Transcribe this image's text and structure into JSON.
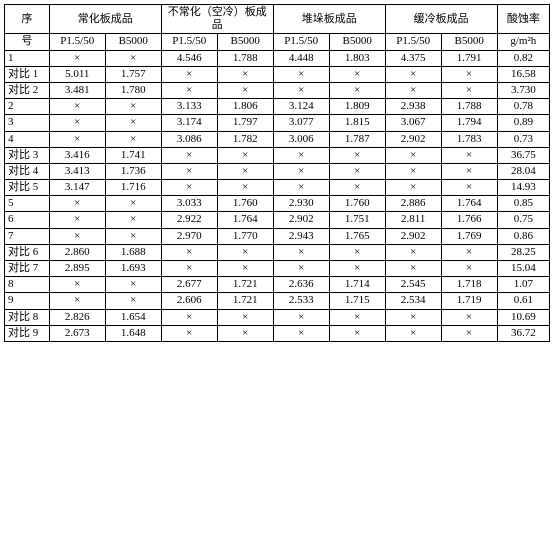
{
  "headers": {
    "seq": "序",
    "seq2": "号",
    "g1": "常化板成品",
    "g2": "不常化（空冷）板成品",
    "g3": "堆垛板成品",
    "g4": "缓冷板成品",
    "rate1": "酸蚀率",
    "rate2": "g/m²h",
    "sub1": "P1.5/50",
    "sub2": "B5000"
  },
  "rows": [
    {
      "label": "1",
      "v": [
        "×",
        "×",
        "4.546",
        "1.788",
        "4.448",
        "1.803",
        "4.375",
        "1.791",
        "0.82"
      ]
    },
    {
      "label": "对比 1",
      "v": [
        "5.011",
        "1.757",
        "×",
        "×",
        "×",
        "×",
        "×",
        "×",
        "16.58"
      ]
    },
    {
      "label": "对比 2",
      "v": [
        "3.481",
        "1.780",
        "×",
        "×",
        "×",
        "×",
        "×",
        "×",
        "3.730"
      ]
    },
    {
      "label": "2",
      "v": [
        "×",
        "×",
        "3.133",
        "1.806",
        "3.124",
        "1.809",
        "2.938",
        "1.788",
        "0.78"
      ]
    },
    {
      "label": "3",
      "v": [
        "×",
        "×",
        "3.174",
        "1.797",
        "3.077",
        "1.815",
        "3.067",
        "1.794",
        "0.89"
      ]
    },
    {
      "label": "4",
      "v": [
        "×",
        "×",
        "3.086",
        "1.782",
        "3.006",
        "1.787",
        "2.902",
        "1.783",
        "0.73"
      ]
    },
    {
      "label": "对比 3",
      "v": [
        "3.416",
        "1.741",
        "×",
        "×",
        "×",
        "×",
        "×",
        "×",
        "36.75"
      ]
    },
    {
      "label": "对比 4",
      "v": [
        "3.413",
        "1.736",
        "×",
        "×",
        "×",
        "×",
        "×",
        "×",
        "28.04"
      ]
    },
    {
      "label": "对比 5",
      "v": [
        "3.147",
        "1.716",
        "×",
        "×",
        "×",
        "×",
        "×",
        "×",
        "14.93"
      ]
    },
    {
      "label": "5",
      "v": [
        "×",
        "×",
        "3.033",
        "1.760",
        "2.930",
        "1.760",
        "2.886",
        "1.764",
        "0.85"
      ]
    },
    {
      "label": "6",
      "v": [
        "×",
        "×",
        "2.922",
        "1.764",
        "2.902",
        "1.751",
        "2.811",
        "1.766",
        "0.75"
      ]
    },
    {
      "label": "7",
      "v": [
        "×",
        "×",
        "2.970",
        "1.770",
        "2.943",
        "1.765",
        "2.902",
        "1.769",
        "0.86"
      ]
    },
    {
      "label": "对比 6",
      "v": [
        "2.860",
        "1.688",
        "×",
        "×",
        "×",
        "×",
        "×",
        "×",
        "28.25"
      ]
    },
    {
      "label": "对比 7",
      "v": [
        "2.895",
        "1.693",
        "×",
        "×",
        "×",
        "×",
        "×",
        "×",
        "15.04"
      ]
    },
    {
      "label": "8",
      "v": [
        "×",
        "×",
        "2.677",
        "1.721",
        "2.636",
        "1.714",
        "2.545",
        "1.718",
        "1.07"
      ]
    },
    {
      "label": "9",
      "v": [
        "×",
        "×",
        "2.606",
        "1.721",
        "2.533",
        "1.715",
        "2.534",
        "1.719",
        "0.61"
      ]
    },
    {
      "label": "对比 8",
      "v": [
        "2.826",
        "1.654",
        "×",
        "×",
        "×",
        "×",
        "×",
        "×",
        "10.69"
      ]
    },
    {
      "label": "对比 9",
      "v": [
        "2.673",
        "1.648",
        "×",
        "×",
        "×",
        "×",
        "×",
        "×",
        "36.72"
      ]
    }
  ]
}
